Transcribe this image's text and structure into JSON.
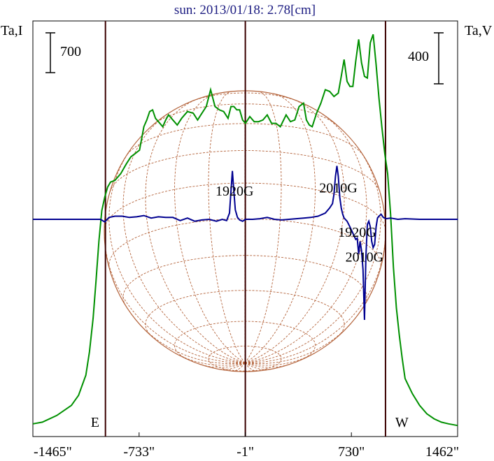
{
  "chart_data": {
    "type": "line",
    "title": "sun: 2013/01/18: 2.78[cm]",
    "left_axis_label": "Ta,I",
    "right_axis_label": "Ta,V",
    "left_scale_bar": "700",
    "right_scale_bar": "400",
    "x_ticks": [
      {
        "value": -1465,
        "label": "-1465\""
      },
      {
        "value": -733,
        "label": "-733\""
      },
      {
        "value": -1,
        "label": "-1\""
      },
      {
        "value": 730,
        "label": "730\""
      },
      {
        "value": 1462,
        "label": "1462\""
      }
    ],
    "xlim": [
      -1465,
      1462
    ],
    "limb_markers": [
      {
        "label": "E",
        "x": -965
      },
      {
        "label": "W",
        "x": 965
      }
    ],
    "center_line_x": -1,
    "grid": false,
    "annotations": [
      {
        "text": "1920G",
        "x": -75,
        "y": 38
      },
      {
        "text": "2010G",
        "x": 640,
        "y": 43
      },
      {
        "text": "1920G",
        "x": 770,
        "y": -28
      },
      {
        "text": "2010G",
        "x": 820,
        "y": -67
      }
    ],
    "series": [
      {
        "name": "I",
        "color": "#009000",
        "x": [
          -1465,
          -1400,
          -1300,
          -1200,
          -1150,
          -1100,
          -1075,
          -1050,
          -1030,
          -1010,
          -990,
          -970,
          -950,
          -930,
          -900,
          -860,
          -820,
          -790,
          -760,
          -730,
          -700,
          -680,
          -660,
          -640,
          -620,
          -600,
          -570,
          -550,
          -530,
          -500,
          -470,
          -440,
          -400,
          -360,
          -330,
          -300,
          -270,
          -240,
          -210,
          -180,
          -150,
          -120,
          -100,
          -80,
          -60,
          -40,
          -20,
          0,
          30,
          60,
          90,
          120,
          150,
          180,
          210,
          240,
          280,
          310,
          340,
          370,
          400,
          420,
          440,
          460,
          490,
          520,
          550,
          580,
          610,
          640,
          660,
          680,
          700,
          720,
          740,
          760,
          780,
          800,
          820,
          840,
          860,
          880,
          900,
          920,
          940,
          960,
          980,
          1000,
          1020,
          1040,
          1060,
          1080,
          1100,
          1150,
          1200,
          1250,
          1300,
          1350,
          1400,
          1462
        ],
        "values": [
          15,
          20,
          40,
          70,
          100,
          160,
          230,
          330,
          440,
          560,
          650,
          690,
          720,
          735,
          740,
          760,
          790,
          810,
          820,
          830,
          900,
          920,
          945,
          950,
          925,
          915,
          900,
          920,
          935,
          920,
          905,
          925,
          945,
          940,
          920,
          940,
          960,
          1010,
          960,
          950,
          945,
          925,
          960,
          960,
          950,
          950,
          920,
          910,
          930,
          915,
          915,
          920,
          935,
          910,
          910,
          900,
          935,
          915,
          920,
          960,
          970,
          920,
          905,
          900,
          940,
          970,
          1010,
          1005,
          990,
          1000,
          1050,
          1100,
          1035,
          1020,
          1020,
          1095,
          1160,
          1090,
          1050,
          1045,
          1150,
          1175,
          1085,
          985,
          900,
          820,
          760,
          640,
          480,
          360,
          280,
          210,
          150,
          105,
          70,
          45,
          30,
          20,
          15,
          10
        ]
      },
      {
        "name": "V",
        "color": "#000090",
        "x": [
          -1465,
          -1300,
          -1100,
          -1000,
          -970,
          -940,
          -900,
          -850,
          -800,
          -750,
          -700,
          -650,
          -600,
          -550,
          -500,
          -450,
          -400,
          -350,
          -300,
          -250,
          -200,
          -160,
          -130,
          -110,
          -100,
          -90,
          -80,
          -70,
          -55,
          -40,
          -20,
          0,
          50,
          100,
          150,
          200,
          250,
          300,
          350,
          400,
          450,
          500,
          550,
          580,
          600,
          610,
          620,
          630,
          640,
          650,
          660,
          670,
          680,
          700,
          720,
          740,
          760,
          770,
          780,
          790,
          800,
          810,
          820,
          830,
          840,
          850,
          860,
          870,
          880,
          890,
          900,
          910,
          920,
          935,
          950,
          970,
          1000,
          1050,
          1100,
          1200,
          1300,
          1465
        ],
        "values": [
          0,
          0,
          0,
          0,
          -4,
          3,
          5,
          5,
          3,
          4,
          6,
          2,
          4,
          3,
          3,
          -2,
          2,
          -3,
          -1,
          0,
          -3,
          0,
          -2,
          10,
          45,
          77,
          45,
          15,
          3,
          -1,
          -3,
          0,
          0,
          1,
          3,
          0,
          -1,
          0,
          1,
          2,
          3,
          5,
          10,
          18,
          25,
          40,
          68,
          85,
          68,
          35,
          18,
          8,
          2,
          -3,
          -12,
          -22,
          -32,
          -30,
          -55,
          -35,
          -50,
          -80,
          -160,
          -60,
          -8,
          -3,
          -12,
          -35,
          -45,
          -40,
          -12,
          2,
          5,
          8,
          3,
          1,
          2,
          0,
          1,
          0,
          0,
          0
        ]
      }
    ]
  }
}
